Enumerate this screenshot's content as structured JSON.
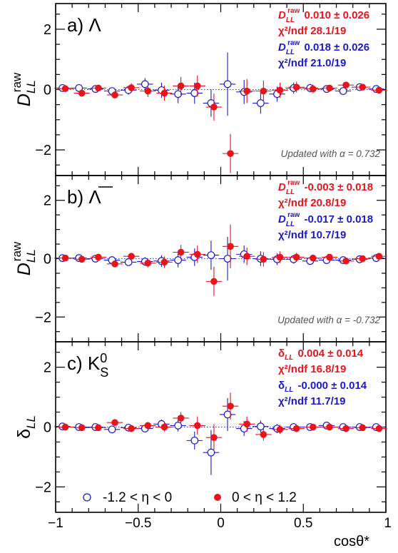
{
  "x_axis": {
    "label": "cosθ*",
    "range": [
      -1,
      1
    ],
    "ticks": [
      -1,
      -0.5,
      0,
      0.5,
      1
    ],
    "tick_labels": [
      "−1",
      "−0.5",
      "0",
      "0.5",
      "1"
    ]
  },
  "legend": {
    "placement": "bottom",
    "entries": [
      {
        "label": "-1.2 < η < 0",
        "marker": "open-circle",
        "color": "#1a1acc"
      },
      {
        "label": "0 < η < 1.2",
        "marker": "filled-circle",
        "color": "#e8141c"
      }
    ]
  },
  "colors": {
    "blue": "#1a1acc",
    "red": "#e8141c",
    "frame": "#000000"
  },
  "chart_data": [
    {
      "type": "scatter",
      "panel_label": "a) Λ",
      "ylabel": "D_LL^raw",
      "ylim": [
        -2.85,
        2.85
      ],
      "yticks": [
        -2,
        0,
        2
      ],
      "ytick_labels": [
        "−2",
        "0",
        "2"
      ],
      "reference_line": 0,
      "annotation": "Updated with α = 0.732",
      "stats": [
        {
          "quantity": "D_LL^raw",
          "value": "0.010 ± 0.026",
          "color": "red"
        },
        {
          "quantity": "χ²/ndf",
          "value": "28.1/19",
          "color": "red"
        },
        {
          "quantity": "D_LL^raw",
          "value": "0.018 ± 0.026",
          "color": "blue"
        },
        {
          "quantity": "χ²/ndf",
          "value": "21.0/19",
          "color": "blue"
        }
      ],
      "series": [
        {
          "name": "-1.2 < η < 0",
          "marker": "open-circle",
          "color": "blue",
          "x": [
            -0.95,
            -0.85,
            -0.75,
            -0.65,
            -0.55,
            -0.45,
            -0.35,
            -0.25,
            -0.15,
            -0.05,
            0.05,
            0.15,
            0.25,
            0.35,
            0.45,
            0.55,
            0.65,
            0.75,
            0.85,
            0.95
          ],
          "y": [
            0.05,
            0.05,
            0.02,
            -0.05,
            -0.02,
            0.18,
            -0.02,
            -0.15,
            -0.12,
            -0.45,
            0.18,
            -0.08,
            -0.45,
            -0.15,
            0.05,
            0.05,
            0.02,
            -0.05,
            0.08,
            0.02
          ],
          "yerr": [
            0.07,
            0.08,
            0.1,
            0.12,
            0.15,
            0.2,
            0.25,
            0.3,
            0.35,
            0.45,
            1.05,
            0.4,
            0.35,
            0.25,
            0.18,
            0.14,
            0.1,
            0.09,
            0.08,
            0.07
          ]
        },
        {
          "name": "0 < η < 1.2",
          "marker": "filled-circle",
          "color": "red",
          "x": [
            -0.95,
            -0.85,
            -0.75,
            -0.65,
            -0.55,
            -0.45,
            -0.35,
            -0.25,
            -0.15,
            -0.05,
            0.05,
            0.15,
            0.25,
            0.35,
            0.45,
            0.55,
            0.65,
            0.75,
            0.85,
            0.95
          ],
          "y": [
            0.03,
            -0.12,
            0.05,
            -0.18,
            0.06,
            -0.05,
            -0.12,
            0.12,
            0.12,
            -0.58,
            -2.12,
            -0.05,
            -0.05,
            -0.02,
            0.08,
            0.02,
            0.05,
            0.15,
            0.08,
            -0.02
          ],
          "yerr": [
            0.07,
            0.08,
            0.1,
            0.12,
            0.15,
            0.2,
            0.25,
            0.3,
            0.35,
            0.45,
            0.65,
            0.4,
            0.35,
            0.25,
            0.18,
            0.14,
            0.1,
            0.09,
            0.08,
            0.07
          ]
        }
      ]
    },
    {
      "type": "scatter",
      "panel_label": "b) Λ",
      "panel_label_overline": true,
      "ylabel": "D_LL^raw",
      "ylim": [
        -2.85,
        2.85
      ],
      "yticks": [
        -2,
        0,
        2
      ],
      "ytick_labels": [
        "−2",
        "0",
        "2"
      ],
      "reference_line": 0,
      "annotation": "Updated with α = -0.732",
      "stats": [
        {
          "quantity": "D_LL^raw",
          "value": "-0.003 ± 0.018",
          "color": "red"
        },
        {
          "quantity": "χ²/ndf",
          "value": "20.8/19",
          "color": "red"
        },
        {
          "quantity": "D_LL^raw",
          "value": "-0.017 ± 0.018",
          "color": "blue"
        },
        {
          "quantity": "χ²/ndf",
          "value": "10.7/19",
          "color": "blue"
        }
      ],
      "series": [
        {
          "name": "-1.2 < η < 0",
          "marker": "open-circle",
          "color": "blue",
          "x": [
            -0.95,
            -0.85,
            -0.75,
            -0.65,
            -0.55,
            -0.45,
            -0.35,
            -0.25,
            -0.15,
            -0.05,
            0.05,
            0.15,
            0.25,
            0.35,
            0.45,
            0.55,
            0.65,
            0.75,
            0.85,
            0.95
          ],
          "y": [
            0.02,
            0.02,
            0.0,
            -0.05,
            -0.12,
            -0.1,
            -0.08,
            -0.05,
            0.05,
            0.12,
            0.0,
            0.15,
            0.0,
            -0.02,
            -0.02,
            -0.08,
            -0.05,
            -0.05,
            -0.02,
            0.02
          ],
          "yerr": [
            0.05,
            0.06,
            0.08,
            0.1,
            0.12,
            0.15,
            0.2,
            0.25,
            0.3,
            0.5,
            0.75,
            0.3,
            0.25,
            0.2,
            0.15,
            0.12,
            0.1,
            0.08,
            0.06,
            0.05
          ]
        },
        {
          "name": "0 < η < 1.2",
          "marker": "filled-circle",
          "color": "red",
          "x": [
            -0.95,
            -0.85,
            -0.75,
            -0.65,
            -0.55,
            -0.45,
            -0.35,
            -0.25,
            -0.15,
            -0.05,
            0.05,
            0.15,
            0.25,
            0.35,
            0.45,
            0.55,
            0.65,
            0.75,
            0.85,
            0.95
          ],
          "y": [
            0.02,
            -0.02,
            0.05,
            -0.18,
            0.08,
            -0.15,
            -0.12,
            0.22,
            0.15,
            -0.78,
            0.42,
            0.08,
            -0.02,
            0.05,
            0.05,
            0.02,
            0.05,
            -0.08,
            0.0,
            0.08
          ],
          "yerr": [
            0.05,
            0.06,
            0.08,
            0.1,
            0.12,
            0.15,
            0.2,
            0.25,
            0.3,
            0.5,
            0.75,
            0.3,
            0.25,
            0.2,
            0.15,
            0.12,
            0.1,
            0.08,
            0.06,
            0.05
          ]
        }
      ]
    },
    {
      "type": "scatter",
      "panel_label": "c) K",
      "panel_label_super": "0",
      "panel_label_sub": "S",
      "ylabel": "δ_LL",
      "ylim": [
        -2.85,
        2.85
      ],
      "yticks": [
        -2,
        0,
        2
      ],
      "ytick_labels": [
        "−2",
        "0",
        "2"
      ],
      "reference_line": 0,
      "stats": [
        {
          "quantity": "δ_LL",
          "value": "0.004 ± 0.014",
          "color": "red"
        },
        {
          "quantity": "χ²/ndf",
          "value": "16.8/19",
          "color": "red"
        },
        {
          "quantity": "δ_LL",
          "value": "-0.000 ± 0.014",
          "color": "blue"
        },
        {
          "quantity": "χ²/ndf",
          "value": "11.7/19",
          "color": "blue"
        }
      ],
      "series": [
        {
          "name": "-1.2 < η < 0",
          "marker": "open-circle",
          "color": "blue",
          "x": [
            -0.95,
            -0.85,
            -0.75,
            -0.65,
            -0.55,
            -0.45,
            -0.35,
            -0.25,
            -0.15,
            -0.05,
            0.05,
            0.15,
            0.25,
            0.35,
            0.45,
            0.55,
            0.65,
            0.75,
            0.85,
            0.95
          ],
          "y": [
            0.02,
            0.0,
            0.0,
            -0.08,
            -0.02,
            -0.05,
            0.1,
            0.05,
            -0.45,
            -0.85,
            0.42,
            -0.05,
            0.02,
            -0.05,
            0.0,
            0.0,
            0.05,
            0.0,
            0.0,
            0.0
          ],
          "yerr": [
            0.04,
            0.05,
            0.06,
            0.08,
            0.1,
            0.12,
            0.15,
            0.2,
            0.3,
            0.75,
            0.55,
            0.25,
            0.2,
            0.15,
            0.12,
            0.1,
            0.08,
            0.06,
            0.05,
            0.04
          ]
        },
        {
          "name": "0 < η < 1.2",
          "marker": "filled-circle",
          "color": "red",
          "x": [
            -0.95,
            -0.85,
            -0.75,
            -0.65,
            -0.55,
            -0.45,
            -0.35,
            -0.25,
            -0.15,
            -0.05,
            0.05,
            0.15,
            0.25,
            0.35,
            0.45,
            0.55,
            0.65,
            0.75,
            0.85,
            0.95
          ],
          "y": [
            0.0,
            -0.02,
            -0.02,
            0.15,
            -0.05,
            0.05,
            0.0,
            0.3,
            0.05,
            -0.35,
            0.7,
            0.1,
            -0.25,
            -0.08,
            -0.05,
            0.0,
            0.0,
            -0.05,
            -0.02,
            -0.05
          ],
          "yerr": [
            0.04,
            0.05,
            0.06,
            0.08,
            0.1,
            0.12,
            0.15,
            0.2,
            0.3,
            0.45,
            0.45,
            0.25,
            0.2,
            0.15,
            0.12,
            0.1,
            0.08,
            0.06,
            0.05,
            0.04
          ]
        }
      ]
    }
  ]
}
